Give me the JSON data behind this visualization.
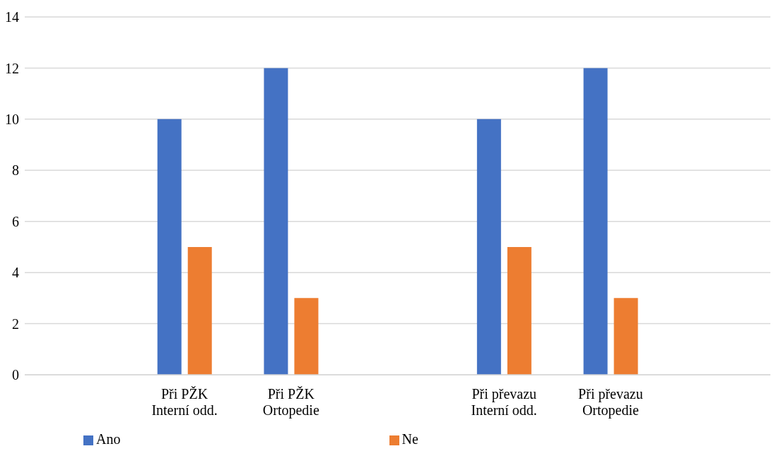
{
  "chart_data": {
    "type": "bar",
    "categories": [
      null,
      "Při PŽK\nInterní odd.",
      "Při PŽK\nOrtopedie",
      null,
      "Při převazu\nInterní odd.",
      "Při převazu\nOrtopedie",
      null
    ],
    "series": [
      {
        "name": "Ano",
        "color": "#4472c4",
        "values": [
          null,
          10,
          12,
          null,
          10,
          12,
          null
        ]
      },
      {
        "name": "Ne",
        "color": "#ed7d31",
        "values": [
          null,
          5,
          3,
          null,
          5,
          3,
          null
        ]
      }
    ],
    "ylim": [
      0,
      14
    ],
    "yticks": [
      0,
      2,
      4,
      6,
      8,
      10,
      12,
      14
    ],
    "grid": "y",
    "legend": "bottom"
  }
}
